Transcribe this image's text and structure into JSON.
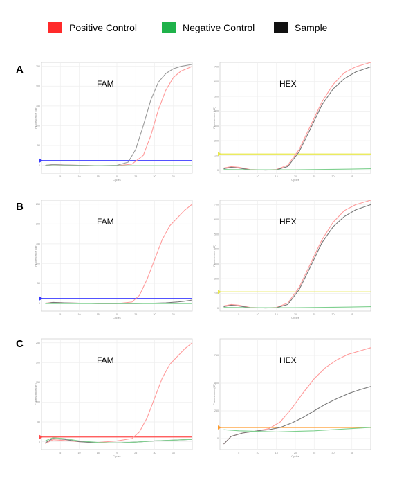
{
  "legend": {
    "positive": {
      "label": "Positive Control",
      "color": "#ff2a2a"
    },
    "negative": {
      "label": "Negative Control",
      "color": "#1fb24a"
    },
    "sample": {
      "label": "Sample",
      "color": "#111111"
    }
  },
  "rows": [
    "A",
    "B",
    "C"
  ],
  "axis_labels": {
    "x": "Cycles",
    "y": "Fluorescence (dR)"
  },
  "chart_data": [
    {
      "panel": "A-FAM",
      "type": "line",
      "title": "FAM",
      "xlim": [
        0,
        40
      ],
      "ylim": [
        -20,
        260
      ],
      "xticks": [
        5,
        10,
        15,
        20,
        25,
        30,
        35
      ],
      "yticks": [
        0,
        50,
        100,
        150,
        200,
        250
      ],
      "grid": true,
      "threshold": {
        "value": 12,
        "color": "#3a3aff"
      },
      "series": [
        {
          "role": "positive",
          "color": "#ff9a9a",
          "x": [
            1,
            3,
            6,
            10,
            15,
            20,
            24,
            27,
            29,
            31,
            33,
            35,
            37,
            40
          ],
          "y": [
            0,
            2,
            1,
            0,
            -1,
            -1,
            3,
            25,
            75,
            140,
            190,
            222,
            238,
            250
          ]
        },
        {
          "role": "sample",
          "color": "#9a9a9a",
          "x": [
            1,
            3,
            6,
            10,
            15,
            20,
            23,
            25,
            27,
            29,
            31,
            33,
            35,
            37,
            40
          ],
          "y": [
            0,
            2,
            1,
            0,
            -1,
            0,
            8,
            40,
            100,
            165,
            210,
            232,
            244,
            250,
            255
          ]
        },
        {
          "role": "negative",
          "color": "#7fd08f",
          "x": [
            1,
            5,
            10,
            15,
            20,
            25,
            30,
            35,
            40
          ],
          "y": [
            -1,
            -1,
            -1,
            -1,
            -1,
            -1,
            -1,
            -1,
            -1
          ]
        }
      ]
    },
    {
      "panel": "A-HEX",
      "type": "line",
      "title": "HEX",
      "xlim": [
        0,
        40
      ],
      "ylim": [
        -20,
        730
      ],
      "xticks": [
        5,
        10,
        15,
        20,
        25,
        30,
        35
      ],
      "yticks": [
        0,
        100,
        200,
        300,
        400,
        500,
        600,
        700
      ],
      "grid": true,
      "threshold": {
        "value": 110,
        "color": "#e8e84a"
      },
      "series": [
        {
          "role": "positive",
          "color": "#ff9a9a",
          "x": [
            1,
            3,
            5,
            8,
            12,
            15,
            18,
            21,
            24,
            27,
            30,
            33,
            36,
            40
          ],
          "y": [
            15,
            25,
            20,
            5,
            2,
            5,
            35,
            140,
            300,
            460,
            580,
            660,
            700,
            730
          ]
        },
        {
          "role": "sample",
          "color": "#777777",
          "x": [
            1,
            3,
            5,
            8,
            12,
            15,
            18,
            21,
            24,
            27,
            30,
            33,
            36,
            40
          ],
          "y": [
            10,
            20,
            15,
            3,
            1,
            3,
            25,
            125,
            280,
            440,
            550,
            620,
            665,
            700
          ]
        },
        {
          "role": "negative",
          "color": "#7fd08f",
          "x": [
            1,
            10,
            20,
            30,
            40
          ],
          "y": [
            5,
            3,
            3,
            6,
            10
          ]
        }
      ]
    },
    {
      "panel": "B-FAM",
      "type": "line",
      "title": "FAM",
      "xlim": [
        0,
        40
      ],
      "ylim": [
        -20,
        260
      ],
      "xticks": [
        5,
        10,
        15,
        20,
        25,
        30,
        35
      ],
      "yticks": [
        0,
        50,
        100,
        150,
        200,
        250
      ],
      "grid": true,
      "threshold": {
        "value": 12,
        "color": "#3a3aff"
      },
      "series": [
        {
          "role": "positive",
          "color": "#ff9a9a",
          "x": [
            1,
            3,
            6,
            10,
            15,
            20,
            24,
            26,
            28,
            30,
            32,
            34,
            36,
            38,
            40
          ],
          "y": [
            0,
            2,
            1,
            0,
            -1,
            -1,
            3,
            20,
            60,
            110,
            160,
            195,
            215,
            235,
            250
          ]
        },
        {
          "role": "sample",
          "color": "#777777",
          "x": [
            1,
            3,
            6,
            10,
            15,
            20,
            25,
            30,
            33,
            36,
            38,
            40
          ],
          "y": [
            -1,
            2,
            1,
            0,
            -1,
            -1,
            -1,
            0,
            1,
            3,
            5,
            8
          ]
        },
        {
          "role": "negative",
          "color": "#7fd08f",
          "x": [
            1,
            5,
            10,
            15,
            20,
            25,
            30,
            35,
            40
          ],
          "y": [
            -1,
            -1,
            -1,
            -1,
            -1,
            -1,
            -1,
            -1,
            -1
          ]
        }
      ]
    },
    {
      "panel": "B-HEX",
      "type": "line",
      "title": "HEX",
      "xlim": [
        0,
        40
      ],
      "ylim": [
        -20,
        730
      ],
      "xticks": [
        5,
        10,
        15,
        20,
        25,
        30,
        35
      ],
      "yticks": [
        0,
        100,
        200,
        300,
        400,
        500,
        600,
        700
      ],
      "grid": true,
      "threshold": {
        "value": 110,
        "color": "#e8e84a"
      },
      "series": [
        {
          "role": "positive",
          "color": "#ff9a9a",
          "x": [
            1,
            3,
            5,
            8,
            12,
            15,
            18,
            21,
            24,
            27,
            30,
            33,
            36,
            40
          ],
          "y": [
            15,
            25,
            20,
            5,
            2,
            5,
            35,
            140,
            300,
            460,
            580,
            660,
            700,
            730
          ]
        },
        {
          "role": "sample",
          "color": "#777777",
          "x": [
            1,
            3,
            5,
            8,
            12,
            15,
            18,
            21,
            24,
            27,
            30,
            33,
            36,
            40
          ],
          "y": [
            10,
            20,
            15,
            3,
            1,
            3,
            25,
            125,
            280,
            440,
            550,
            620,
            665,
            700
          ]
        },
        {
          "role": "negative",
          "color": "#7fd08f",
          "x": [
            1,
            10,
            20,
            30,
            40
          ],
          "y": [
            5,
            3,
            3,
            6,
            10
          ]
        }
      ]
    },
    {
      "panel": "C-FAM",
      "type": "line",
      "title": "FAM",
      "xlim": [
        0,
        40
      ],
      "ylim": [
        -20,
        260
      ],
      "xticks": [
        5,
        10,
        15,
        20,
        25,
        30,
        35
      ],
      "yticks": [
        0,
        50,
        100,
        150,
        200,
        250
      ],
      "grid": true,
      "threshold": {
        "value": 12,
        "color": "#ff4a4a"
      },
      "series": [
        {
          "role": "positive",
          "color": "#ff9a9a",
          "x": [
            1,
            3,
            6,
            10,
            15,
            20,
            24,
            26,
            28,
            30,
            32,
            34,
            36,
            38,
            40
          ],
          "y": [
            -5,
            5,
            3,
            0,
            -2,
            2,
            8,
            25,
            60,
            110,
            160,
            195,
            215,
            235,
            250
          ]
        },
        {
          "role": "sample",
          "color": "#777777",
          "x": [
            1,
            3,
            6,
            10,
            15,
            20,
            25,
            30,
            35,
            40
          ],
          "y": [
            -3,
            8,
            6,
            0,
            -3,
            -3,
            -1,
            2,
            4,
            6
          ]
        },
        {
          "role": "negative",
          "color": "#7fd08f",
          "x": [
            1,
            3,
            6,
            10,
            15,
            20,
            25,
            30,
            35,
            40
          ],
          "y": [
            2,
            10,
            8,
            2,
            -2,
            -3,
            -1,
            2,
            4,
            6
          ]
        }
      ]
    },
    {
      "panel": "C-HEX",
      "type": "line",
      "title": "HEX",
      "xlim": [
        0,
        40
      ],
      "ylim": [
        -100,
        900
      ],
      "xticks": [
        5,
        10,
        15,
        20,
        25,
        30,
        35
      ],
      "yticks": [
        0,
        250,
        500,
        750
      ],
      "grid": true,
      "threshold": {
        "value": 100,
        "color": "#ff9a2a"
      },
      "series": [
        {
          "role": "positive",
          "color": "#ff9a9a",
          "x": [
            1,
            3,
            6,
            10,
            13,
            16,
            19,
            22,
            25,
            28,
            31,
            34,
            37,
            40
          ],
          "y": [
            -50,
            20,
            50,
            70,
            90,
            150,
            270,
            410,
            540,
            640,
            710,
            760,
            790,
            820
          ]
        },
        {
          "role": "sample",
          "color": "#777777",
          "x": [
            1,
            3,
            6,
            10,
            13,
            16,
            19,
            22,
            25,
            28,
            31,
            34,
            37,
            40
          ],
          "y": [
            -50,
            20,
            50,
            70,
            80,
            100,
            140,
            190,
            250,
            310,
            360,
            405,
            440,
            470
          ]
        },
        {
          "role": "negative",
          "color": "#7fd08f",
          "x": [
            1,
            5,
            10,
            15,
            20,
            25,
            30,
            35,
            40
          ],
          "y": [
            80,
            70,
            65,
            60,
            65,
            70,
            80,
            90,
            100
          ]
        }
      ]
    }
  ]
}
